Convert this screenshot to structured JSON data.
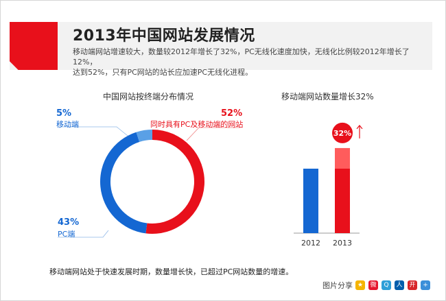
{
  "header": {
    "title": "2013年中国网站发展情况",
    "description_line1": "移动端网站增速较大，数量较2012年增长了32%，PC无线化速度加快，无线化比例较2012年增长了12%，",
    "description_line2": "达到52%，只有PC网站的站长应加速PC无线化进程。"
  },
  "chart_data": [
    {
      "type": "pie",
      "title": "中国网站按终端分布情况",
      "slices": [
        {
          "label": "同时具有PC及移动端的网站",
          "value": 52,
          "display": "52%",
          "color": "#e8101b"
        },
        {
          "label": "PC端",
          "value": 43,
          "display": "43%",
          "color": "#1467d2"
        },
        {
          "label": "移动端",
          "value": 5,
          "display": "5%",
          "color": "#5aa0e6"
        }
      ]
    },
    {
      "type": "bar",
      "title": "移动端网站数量增长32%",
      "categories": [
        "2012",
        "2013"
      ],
      "values": [
        100,
        132
      ],
      "growth_label": "32%",
      "colors": {
        "bar_2012": "#1467d2",
        "bar_2013": "#e8101b",
        "growth": "#ff5c5c"
      }
    }
  ],
  "footnote": "移动端网站处于快速发展时期，数量增长快，已超过PC网站数量的增速。",
  "share": {
    "label": "图片分享",
    "icons": [
      {
        "name": "qzone-icon",
        "color": "#f5b400",
        "glyph": "★"
      },
      {
        "name": "weibo-icon",
        "color": "#e6162d",
        "glyph": "微"
      },
      {
        "name": "tencent-weibo-icon",
        "color": "#2d9fd8",
        "glyph": "Q"
      },
      {
        "name": "renren-icon",
        "color": "#005eac",
        "glyph": "人"
      },
      {
        "name": "kaixin-icon",
        "color": "#d8262a",
        "glyph": "开"
      },
      {
        "name": "more-share-icon",
        "color": "#3b8fd9",
        "glyph": "+"
      }
    ]
  }
}
